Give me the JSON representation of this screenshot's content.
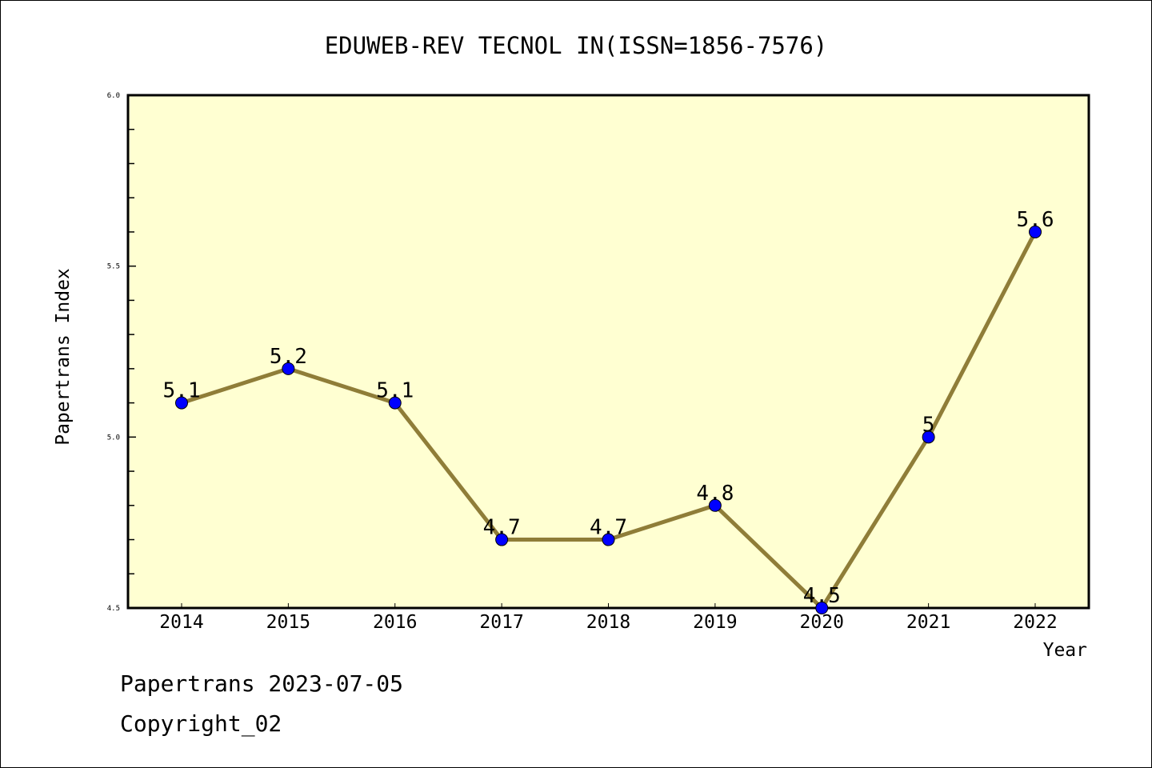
{
  "chart_data": {
    "type": "line",
    "title": "EDUWEB-REV TECNOL IN(ISSN=1856-7576)",
    "xlabel": "Year",
    "ylabel": "Papertrans Index",
    "categories": [
      "2014",
      "2015",
      "2016",
      "2017",
      "2018",
      "2019",
      "2020",
      "2021",
      "2022"
    ],
    "values": [
      5.1,
      5.2,
      5.1,
      4.7,
      4.7,
      4.8,
      4.5,
      5.0,
      5.6
    ],
    "data_labels": [
      "5.1",
      "5.2",
      "5.1",
      "4.7",
      "4.7",
      "4.8",
      "4.5",
      "5",
      "5.6"
    ],
    "ylim": [
      4.5,
      6.0
    ],
    "yticks": [
      "4.5",
      "5.0",
      "5.5",
      "6.0"
    ],
    "grid": false,
    "colors": {
      "line": "#8f7d38",
      "marker": "#0000ff",
      "plot_bg": "#ffffd2"
    }
  },
  "footer": {
    "date_line": "Papertrans 2023-07-05",
    "copyright": "Copyright_02"
  }
}
